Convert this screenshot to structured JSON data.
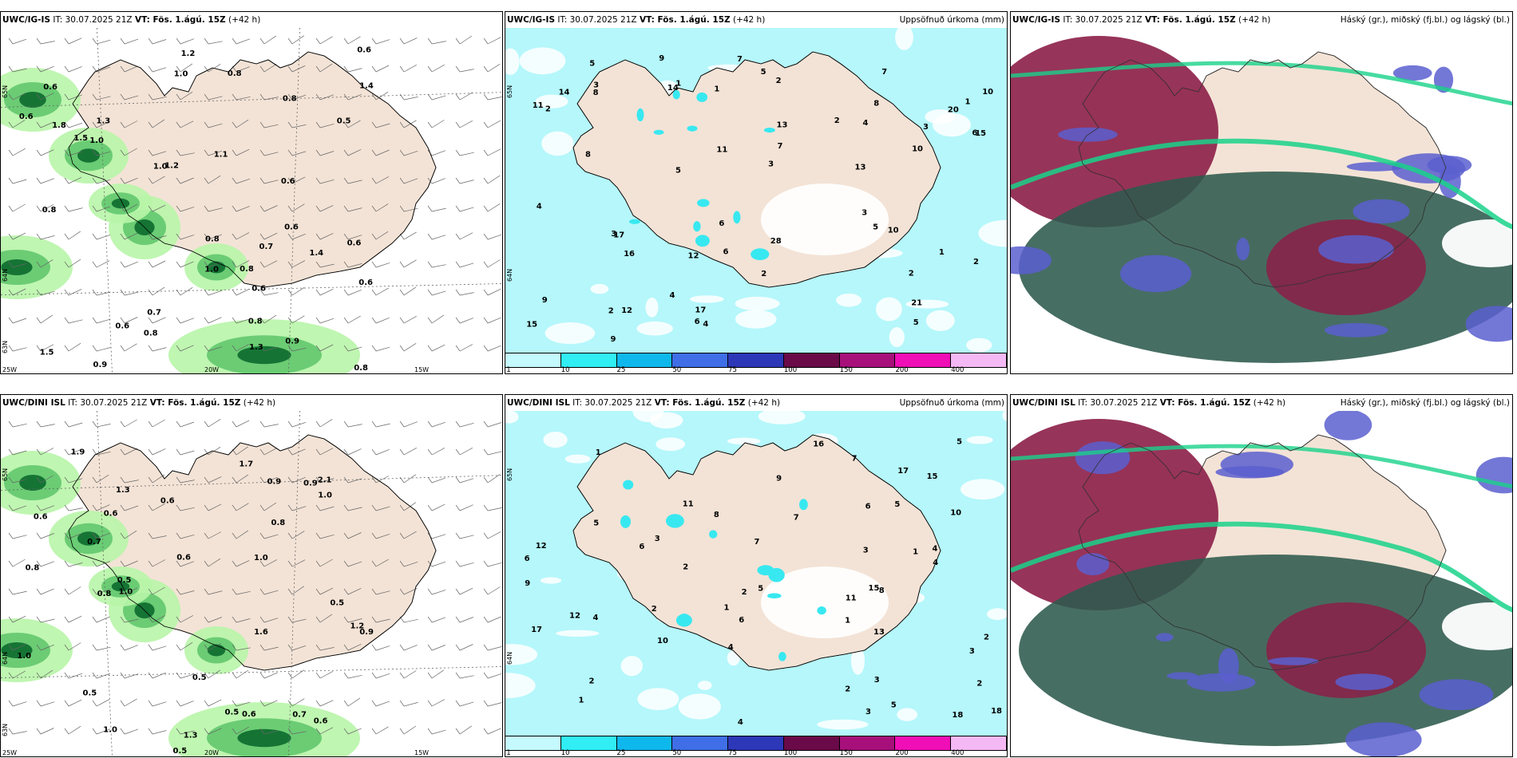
{
  "rows": [
    {
      "model": "UWC/IG-IS",
      "panels": [
        {
          "it": "IT: 30.07.2025 21Z",
          "vt": "VT: Fös. 1.ágú. 15Z",
          "lead": "(+42 h)",
          "right": "",
          "lat_labels": [
            "65N",
            "64N",
            "63N"
          ],
          "lon_labels": [
            "25W",
            "20W",
            "15W"
          ],
          "values": [
            "0.6",
            "0.6",
            "1.5",
            "0.9",
            "1.0",
            "0.8",
            "0.8",
            "1.0",
            "0.8",
            "0.6",
            "1.1",
            "0.8",
            "1.2",
            "0.8",
            "0.9",
            "0.6",
            "1.3",
            "0.5",
            "0.7",
            "0.7",
            "0.6",
            "0.6",
            "1.4",
            "0.6",
            "1.5",
            "0.8",
            "0.6",
            "0.8",
            "1.8",
            "1.0",
            "1.2",
            "1.0",
            "1.3",
            "0.6",
            "0.8",
            "1.4"
          ]
        },
        {
          "it": "IT: 30.07.2025 21Z",
          "vt": "VT: Fös. 1.ágú. 15Z",
          "lead": "(+42 h)",
          "right": "Uppsöfnuð úrkoma (mm)",
          "lat_labels": [
            "65N",
            "64N"
          ],
          "values": [
            "1",
            "2",
            "4",
            "9",
            "7",
            "2",
            "13",
            "17",
            "10",
            "16",
            "17",
            "15",
            "2",
            "14",
            "21",
            "13",
            "12",
            "20",
            "11",
            "5",
            "28",
            "10",
            "14",
            "4",
            "9",
            "6",
            "8",
            "5",
            "12",
            "15",
            "3",
            "7",
            "3",
            "2",
            "6",
            "5",
            "4",
            "2",
            "1",
            "8",
            "6",
            "3",
            "7",
            "5",
            "2",
            "1",
            "3",
            "4",
            "2",
            "1",
            "5",
            "9",
            "8",
            "10",
            "11",
            "3",
            "6"
          ],
          "colorbar": [
            "1",
            "10",
            "25",
            "50",
            "75",
            "100",
            "150",
            "200",
            "400"
          ]
        },
        {
          "it": "IT: 30.07.2025 21Z",
          "vt": "VT: Fös. 1.ágú. 15Z",
          "lead": "(+42 h)",
          "right": "Háský (gr.), miðský (fj.bl.) og lágský (bl.)"
        }
      ]
    },
    {
      "model": "UWC/DINI ISL",
      "panels": [
        {
          "it": "IT: 30.07.2025 21Z",
          "vt": "VT: Fös. 1.ágú. 15Z",
          "lead": "(+42 h)",
          "right": "",
          "lat_labels": [
            "65N",
            "64N",
            "63N"
          ],
          "lon_labels": [
            "25W",
            "20W",
            "15W"
          ],
          "values": [
            "0.6",
            "0.6",
            "1.0",
            "1.3",
            "0.9",
            "0.5",
            "1.6",
            "1.0",
            "2.1",
            "0.9",
            "1.2",
            "1.3",
            "0.8",
            "0.5",
            "0.8",
            "1.0",
            "0.5",
            "0.6",
            "0.6",
            "0.5",
            "0.7",
            "0.5",
            "0.6",
            "0.5",
            "0.9",
            "0.7",
            "1.0",
            "1.7",
            "1.9",
            "0.8",
            "1.0",
            "0.6"
          ]
        },
        {
          "it": "IT: 30.07.2025 21Z",
          "vt": "VT: Fös. 1.ágú. 15Z",
          "lead": "(+42 h)",
          "right": "Uppsöfnuð úrkoma (mm)",
          "lat_labels": [
            "65N",
            "64N"
          ],
          "values": [
            "1",
            "2",
            "1",
            "3",
            "2",
            "5",
            "4",
            "7",
            "2",
            "5",
            "15",
            "11",
            "17",
            "13",
            "10",
            "18",
            "15",
            "12",
            "17",
            "8",
            "6",
            "9",
            "3",
            "7",
            "4",
            "2",
            "5",
            "6",
            "18",
            "4",
            "10",
            "16",
            "12",
            "3",
            "2",
            "1",
            "7",
            "5",
            "8",
            "3",
            "1",
            "2",
            "9",
            "4",
            "6",
            "11",
            "5",
            "3",
            "2",
            "1",
            "4",
            "6"
          ],
          "colorbar": [
            "1",
            "10",
            "25",
            "50",
            "75",
            "100",
            "150",
            "200",
            "400"
          ]
        },
        {
          "it": "IT: 30.07.2025 21Z",
          "vt": "VT: Fös. 1.ágú. 15Z",
          "lead": "(+42 h)",
          "right": "Háský (gr.), miðský (fj.bl.) og lágský (bl.)"
        }
      ]
    }
  ],
  "colors": {
    "land": "#f3e3d6",
    "precip_light": "#b8f5a8",
    "precip_mid": "#5cc46a",
    "precip_dark": "#0c6a2e",
    "accum_base": "#b5f7fb",
    "accum_mid": "#38e8f0",
    "high_cloud": "#2e5a4d",
    "mid_cloud": "#8c1e48",
    "low_cloud": "#5b5fcf",
    "green_edge": "#19d28a",
    "colorbar": [
      "#c4f9fd",
      "#30eef4",
      "#0fb8ec",
      "#3f6ee6",
      "#2d38b8",
      "#6a0a49",
      "#a7107b",
      "#f00fb6",
      "#f4b8f4"
    ]
  }
}
